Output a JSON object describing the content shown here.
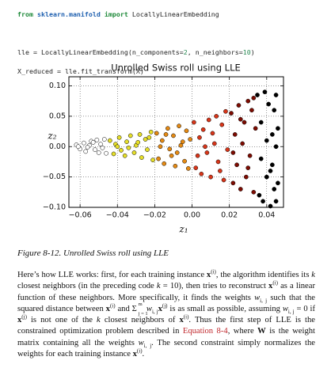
{
  "code": {
    "lines": [
      [
        "from",
        "sklearn.manifold",
        "import",
        "LocallyLinearEmbedding"
      ],
      [
        "lle = LocallyLinearEmbedding(n_components=",
        "2",
        ", n_neighbors=",
        "10",
        ")"
      ],
      [
        "X_reduced = lle.fit_transform(X)"
      ]
    ]
  },
  "chart_data": {
    "type": "scatter",
    "title": "Unrolled Swiss roll using LLE",
    "xlabel": "z₁",
    "ylabel": "z₂",
    "xlim": [
      -0.066,
      0.049
    ],
    "ylim": [
      -0.1,
      0.115
    ],
    "xticks": [
      {
        "value": -0.06,
        "label": "−0.06"
      },
      {
        "value": -0.04,
        "label": "−0.04"
      },
      {
        "value": -0.02,
        "label": "−0.02"
      },
      {
        "value": 0,
        "label": "0.00"
      },
      0.02,
      0.04
    ],
    "yticks": [
      {
        "value": -0.1,
        "label": "−0.10"
      },
      {
        "value": -0.05,
        "label": "−0.05"
      },
      {
        "value": 0,
        "label": "0.00"
      },
      0.05,
      {
        "value": 0.1,
        "label": "0.10"
      }
    ],
    "grid": true,
    "series": [
      {
        "color": "#ffffff",
        "x": [
          -0.062,
          -0.06,
          -0.058,
          -0.057,
          -0.055,
          -0.054,
          -0.052,
          -0.051,
          -0.05,
          -0.049,
          -0.048,
          -0.047,
          -0.046,
          -0.061,
          -0.056,
          -0.053
        ],
        "y": [
          0.003,
          -0.004,
          0.006,
          -0.008,
          0.002,
          0.009,
          -0.005,
          0.011,
          -0.01,
          0.004,
          -0.002,
          0.012,
          -0.011,
          0.0,
          -0.001,
          0.007
        ]
      },
      {
        "color": "#e6df2a",
        "x": [
          -0.044,
          -0.042,
          -0.041,
          -0.039,
          -0.038,
          -0.036,
          -0.035,
          -0.033,
          -0.031,
          -0.03,
          -0.028,
          -0.027,
          -0.025,
          -0.024,
          -0.022,
          -0.021,
          -0.04,
          -0.034,
          -0.029,
          -0.023
        ],
        "y": [
          0.01,
          -0.012,
          0.004,
          0.015,
          -0.006,
          -0.015,
          0.008,
          0.018,
          -0.01,
          0.002,
          0.02,
          -0.018,
          0.012,
          -0.005,
          0.024,
          -0.022,
          0.0,
          -0.002,
          0.007,
          0.015
        ]
      },
      {
        "color": "#e58a14",
        "x": [
          -0.019,
          -0.018,
          -0.016,
          -0.015,
          -0.013,
          -0.012,
          -0.01,
          -0.009,
          -0.007,
          -0.006,
          -0.004,
          -0.003,
          -0.002,
          -0.001,
          -0.017,
          -0.011,
          -0.005,
          -0.014,
          -0.008
        ],
        "y": [
          0.022,
          -0.02,
          0.01,
          -0.028,
          0.03,
          -0.004,
          0.018,
          -0.032,
          0.034,
          0.002,
          -0.024,
          0.026,
          -0.036,
          0.012,
          0.0,
          -0.015,
          0.008,
          0.02,
          -0.01
        ]
      },
      {
        "color": "#d8361a",
        "x": [
          0.001,
          0.002,
          0.004,
          0.005,
          0.006,
          0.008,
          0.009,
          0.01,
          0.012,
          0.013,
          0.014,
          0.016,
          0.017,
          0.018,
          0.019,
          0.003,
          0.007,
          0.011,
          0.015
        ],
        "y": [
          0.04,
          -0.035,
          0.015,
          -0.045,
          0.028,
          -0.01,
          0.044,
          -0.05,
          0.005,
          0.05,
          -0.025,
          0.036,
          -0.055,
          0.058,
          -0.005,
          -0.015,
          0.0,
          0.022,
          -0.04
        ]
      },
      {
        "color": "#7e0c02",
        "x": [
          0.021,
          0.022,
          0.023,
          0.024,
          0.025,
          0.026,
          0.027,
          0.028,
          0.029,
          0.03,
          0.031,
          0.032,
          0.033,
          0.034,
          0.022,
          0.026,
          0.03,
          0.033
        ],
        "y": [
          0.055,
          -0.06,
          0.02,
          -0.03,
          0.068,
          -0.07,
          0.005,
          0.04,
          -0.05,
          0.075,
          -0.015,
          0.06,
          -0.075,
          0.03,
          -0.01,
          0.045,
          -0.035,
          0.08
        ]
      },
      {
        "color": "#000000",
        "x": [
          0.035,
          0.036,
          0.037,
          0.038,
          0.039,
          0.04,
          0.041,
          0.042,
          0.043,
          0.043,
          0.044,
          0.044,
          0.045,
          0.045,
          0.046,
          0.046,
          0.037,
          0.04,
          0.042,
          0.045
        ],
        "y": [
          0.085,
          -0.08,
          0.04,
          -0.09,
          0.09,
          -0.05,
          0.07,
          -0.098,
          0.02,
          -0.03,
          0.06,
          -0.07,
          0.0,
          0.085,
          -0.06,
          0.03,
          -0.02,
          0.01,
          -0.04,
          -0.09
        ]
      }
    ]
  },
  "caption": "Figure 8-12. Unrolled Swiss roll using LLE",
  "paragraph": [
    "Here’s how LLE works: first, for each training instance ",
    "x",
    "(i)",
    ", the algorithm identifies its ",
    "k",
    " closest neighbors (in the preceding code ",
    "k",
    " = 10), then tries to reconstruct ",
    "x",
    "(i)",
    " as a linear function of these neighbors. More specifically, it finds the weights ",
    "w",
    "i, j",
    " such that the squared distance between ",
    "x",
    "(i)",
    " and ",
    "Σ",
    "m",
    "j = 1",
    "w",
    "i, j",
    "x",
    "(j)",
    " is as small as possible, assuming ",
    "w",
    "i, j",
    " = 0 if ",
    "x",
    "(j)",
    " is not one of the ",
    "k",
    " closest neighbors of ",
    "x",
    "(i)",
    ". Thus the first step of LLE is the constrained optimization problem described in ",
    "Equation 8-4",
    ", where ",
    "W",
    " is the weight matrix containing all the weights ",
    "w",
    "i, j",
    ". The second constraint simply normalizes the weights for each training instance ",
    "x",
    "(i)",
    "."
  ]
}
